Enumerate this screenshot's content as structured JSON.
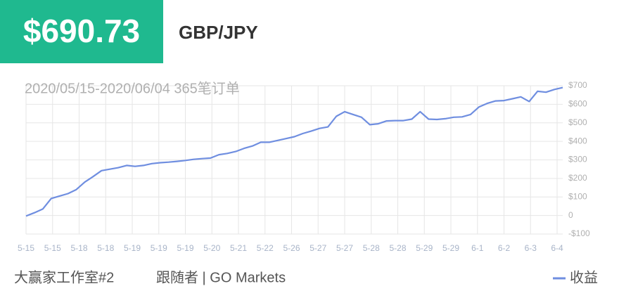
{
  "chart_data": {
    "type": "line",
    "headline": "$690.73",
    "symbol": "GBP/JPY",
    "subtitle": "2020/05/15-2020/06/04 365笔订单",
    "footer_left": "大赢家工作室#2",
    "footer_right": "跟随者 | GO Markets",
    "x_axis_labels": [
      "5-15",
      "5-15",
      "5-18",
      "5-18",
      "5-19",
      "5-19",
      "5-19",
      "5-20",
      "5-21",
      "5-22",
      "5-26",
      "5-27",
      "5-27",
      "5-28",
      "5-28",
      "5-29",
      "5-29",
      "6-1",
      "6-2",
      "6-3",
      "6-4"
    ],
    "ylim": [
      -100,
      700
    ],
    "yticks": [
      {
        "value": -100,
        "label": "-$100"
      },
      0,
      {
        "value": 100,
        "label": "$100"
      },
      {
        "value": 200,
        "label": "$200"
      },
      {
        "value": 300,
        "label": "$300"
      },
      {
        "value": 400,
        "label": "$400"
      },
      {
        "value": 500,
        "label": "$500"
      },
      {
        "value": 600,
        "label": "$600"
      },
      {
        "value": 700,
        "label": "$700"
      }
    ],
    "grid": true,
    "legend": "bottom-right",
    "series": [
      {
        "name": "收益",
        "color": "#6f8ee0",
        "values": [
          -3,
          15,
          35,
          92,
          105,
          118,
          140,
          180,
          210,
          242,
          250,
          258,
          270,
          265,
          270,
          280,
          285,
          288,
          292,
          297,
          303,
          307,
          310,
          328,
          335,
          345,
          362,
          375,
          395,
          395,
          405,
          415,
          425,
          442,
          455,
          470,
          478,
          535,
          560,
          545,
          530,
          490,
          495,
          510,
          512,
          512,
          520,
          560,
          520,
          518,
          522,
          530,
          532,
          545,
          585,
          605,
          618,
          620,
          630,
          640,
          615,
          670,
          665,
          680,
          690
        ]
      }
    ]
  }
}
